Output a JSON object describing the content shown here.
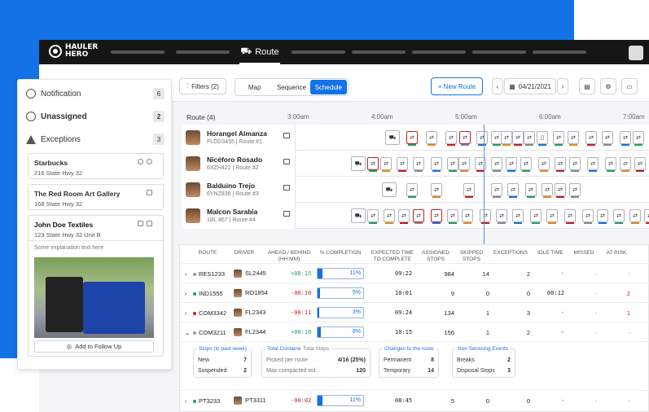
{
  "app": {
    "logo": "HAULER HERO",
    "nav_active": "Route"
  },
  "toolbar": {
    "filters": "Filters (2)",
    "tabs": [
      "Map",
      "Sequence",
      "Schedule"
    ],
    "new_route": "+ New Route",
    "date": "04/21/2021"
  },
  "timeline": {
    "route_count": "Route (4)",
    "times": [
      "3:00am",
      "4:00am",
      "5:00am",
      "6:00am",
      "7:00am"
    ]
  },
  "drivers": [
    {
      "name": "Horangel Almanza",
      "sub": "FLDD3455 | Route #1"
    },
    {
      "name": "Nicéforo Rosado",
      "sub": "6XZH421 | Route #2"
    },
    {
      "name": "Balduino Trejo",
      "sub": "6YNZ836 | Route #3"
    },
    {
      "name": "Malcon Sarabia",
      "sub": "1BL 867 | Route #4"
    }
  ],
  "side": {
    "items": [
      {
        "label": "Notification",
        "count": "6"
      },
      {
        "label": "Unassigned",
        "count": "2"
      },
      {
        "label": "Exceptions",
        "count": "3"
      }
    ],
    "cards": [
      {
        "title": "Starbucks",
        "addr": "216 State Hwy 32"
      },
      {
        "title": "The Red Room Art Gallery",
        "addr": "168 State Hwy 32"
      },
      {
        "title": "John Doe Textiles",
        "addr": "123 State Hwy 32 Unit B",
        "note": "Some explanation text here",
        "action": "Add to Follow Up"
      }
    ]
  },
  "grid": {
    "headers": [
      "ROUTE",
      "DRIVER",
      "AHEAD / BEHIND (HH:MM)",
      "% COMPLETION",
      "EXPECTED TIME TO COMPLETE",
      "ASSIGNED STOPS",
      "SKIPPED STOPS",
      "EXCEPTIONS",
      "IDLE TIME",
      "MISSED",
      "AT RISK"
    ],
    "rows": [
      {
        "route": "RES1233",
        "driver": "SL2445",
        "ahead": "+08:15",
        "pct": "11%",
        "pct_val": 11,
        "exp": "09:22",
        "assigned": "984",
        "skipped": "14",
        "exc": "2",
        "idle": "-",
        "missed": "-",
        "risk": "-",
        "dot": "#999"
      },
      {
        "route": "IND1555",
        "driver": "RO1854",
        "ahead": "-00:10",
        "pct": "5%",
        "pct_val": 5,
        "exp": "10:01",
        "assigned": "9",
        "skipped": "0",
        "exc": "0",
        "idle": "00:12",
        "missed": "-",
        "risk": "2",
        "dot": "#21a05a"
      },
      {
        "route": "COM3342",
        "driver": "FL2343",
        "ahead": "-00:11",
        "pct": "3%",
        "pct_val": 3,
        "exp": "09:24",
        "assigned": "134",
        "skipped": "1",
        "exc": "3",
        "idle": "-",
        "missed": "-",
        "risk": "1",
        "dot": "#c41e1e"
      },
      {
        "route": "COM3211",
        "driver": "FL2344",
        "ahead": "+00:10",
        "pct": "8%",
        "pct_val": 8,
        "exp": "10:15",
        "assigned": "156",
        "skipped": "1",
        "exc": "2",
        "idle": "-",
        "missed": "-",
        "risk": "-",
        "dot": "#999"
      },
      {
        "route": "PT3233",
        "driver": "PT3311",
        "ahead": "-00:02",
        "pct": "11%",
        "pct_val": 11,
        "exp": "08:45",
        "assigned": "5",
        "skipped": "0",
        "exc": "0",
        "idle": "-",
        "missed": "-",
        "risk": "-",
        "dot": "#21a05a"
      }
    ],
    "detail": {
      "stops_h": "Stops (in past week)",
      "new_l": "New",
      "new_v": "7",
      "susp_l": "Suspended",
      "susp_v": "2",
      "cont_h": "Total Container",
      "cont_h2": "Total Stops",
      "picked_l": "Picked per route",
      "picked_v": "4/16 (25%)",
      "comp_l": "Max compacted vol.",
      "comp_v": "120",
      "chg_h": "Changes to the route",
      "perm_l": "Permanent",
      "perm_v": "8",
      "temp_l": "Temporary",
      "temp_v": "14",
      "nse_h": "Non Servicing Events",
      "brk_l": "Breaks",
      "brk_v": "2",
      "disp_l": "Disposal Stops",
      "disp_v": "3"
    }
  },
  "colors": {
    "accent": "#1272e6",
    "positive": "#21a05a",
    "negative": "#c41e1e"
  }
}
